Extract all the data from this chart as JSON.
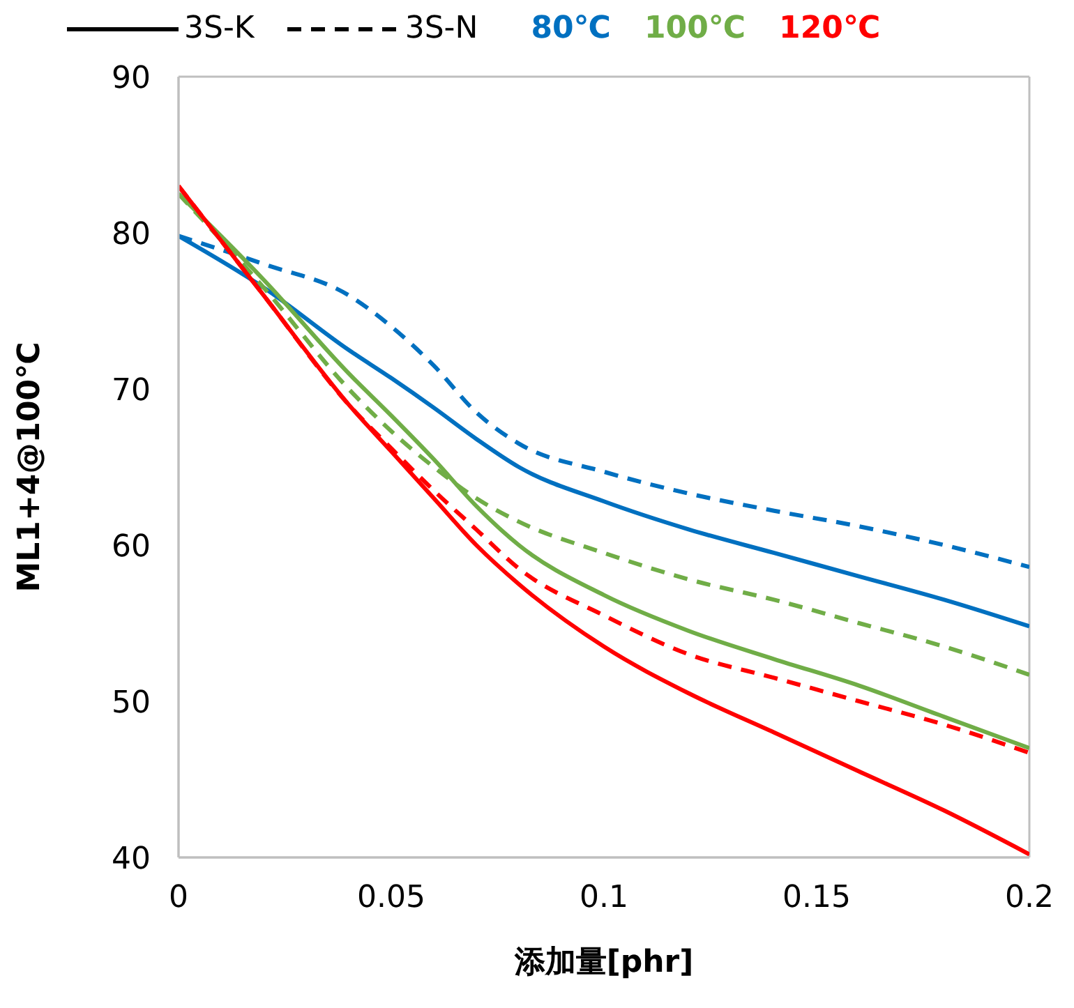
{
  "chart_data": {
    "type": "line",
    "xlabel": "添加量[phr]",
    "ylabel": "ML1+4@100℃",
    "x": [
      0,
      0.02,
      0.04,
      0.05,
      0.06,
      0.07,
      0.08,
      0.1,
      0.12,
      0.14,
      0.16,
      0.18,
      0.2
    ],
    "series": [
      {
        "color": "#0070c0",
        "line_style": "solid",
        "values": [
          79.8,
          76.5,
          72.5,
          70.7,
          68.8,
          66.8,
          65,
          62.8,
          61,
          59.5,
          58,
          56.5,
          54.8
        ]
      },
      {
        "color": "#0070c0",
        "line_style": "dashed",
        "values": [
          79.8,
          78,
          76,
          74,
          71.5,
          68.5,
          66.5,
          64.7,
          63.3,
          62.2,
          61.2,
          60,
          58.6
        ]
      },
      {
        "color": "#70ad47",
        "line_style": "solid",
        "values": [
          82.5,
          77,
          71,
          68.3,
          65.5,
          62.5,
          60,
          56.8,
          54.5,
          52.7,
          51,
          49,
          47
        ]
      },
      {
        "color": "#70ad47",
        "line_style": "dashed",
        "values": [
          82.5,
          76.5,
          70,
          67.3,
          65,
          63,
          61.5,
          59.5,
          57.8,
          56.5,
          55,
          53.5,
          51.7
        ]
      },
      {
        "color": "#ff0000",
        "line_style": "solid",
        "values": [
          83,
          76,
          69,
          66,
          63,
          60,
          57.5,
          53.5,
          50.5,
          48,
          45.5,
          43,
          40.2
        ]
      },
      {
        "color": "#ff0000",
        "line_style": "dashed",
        "values": [
          83,
          76,
          69,
          66.2,
          63.5,
          61,
          58.5,
          55.5,
          53,
          51.5,
          50,
          48.5,
          46.7
        ]
      }
    ],
    "xlim": [
      0,
      0.2
    ],
    "xticks": [
      0,
      0.05,
      0.1,
      0.15,
      0.2
    ],
    "ylim": [
      40,
      90
    ],
    "yticks": [
      40,
      50,
      60,
      70,
      80,
      90
    ],
    "annotations": [
      "3S-K",
      "3S-N",
      "80℃",
      "100℃",
      "120℃"
    ]
  }
}
